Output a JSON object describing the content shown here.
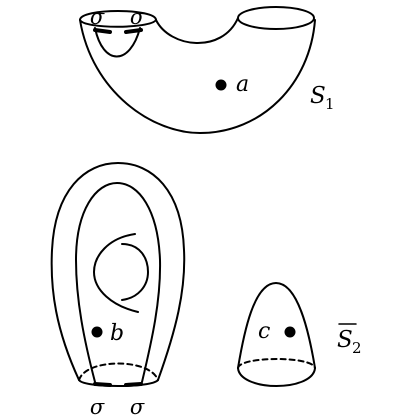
{
  "labels": {
    "sigma": "σ",
    "point_a": "a",
    "point_b": "b",
    "point_c": "c",
    "surface_S1": "S",
    "surface_S1_sub": "1",
    "surface_S2": "S",
    "surface_S2_sub": "2"
  },
  "colors": {
    "stroke": "#000000",
    "background": "#ffffff"
  }
}
